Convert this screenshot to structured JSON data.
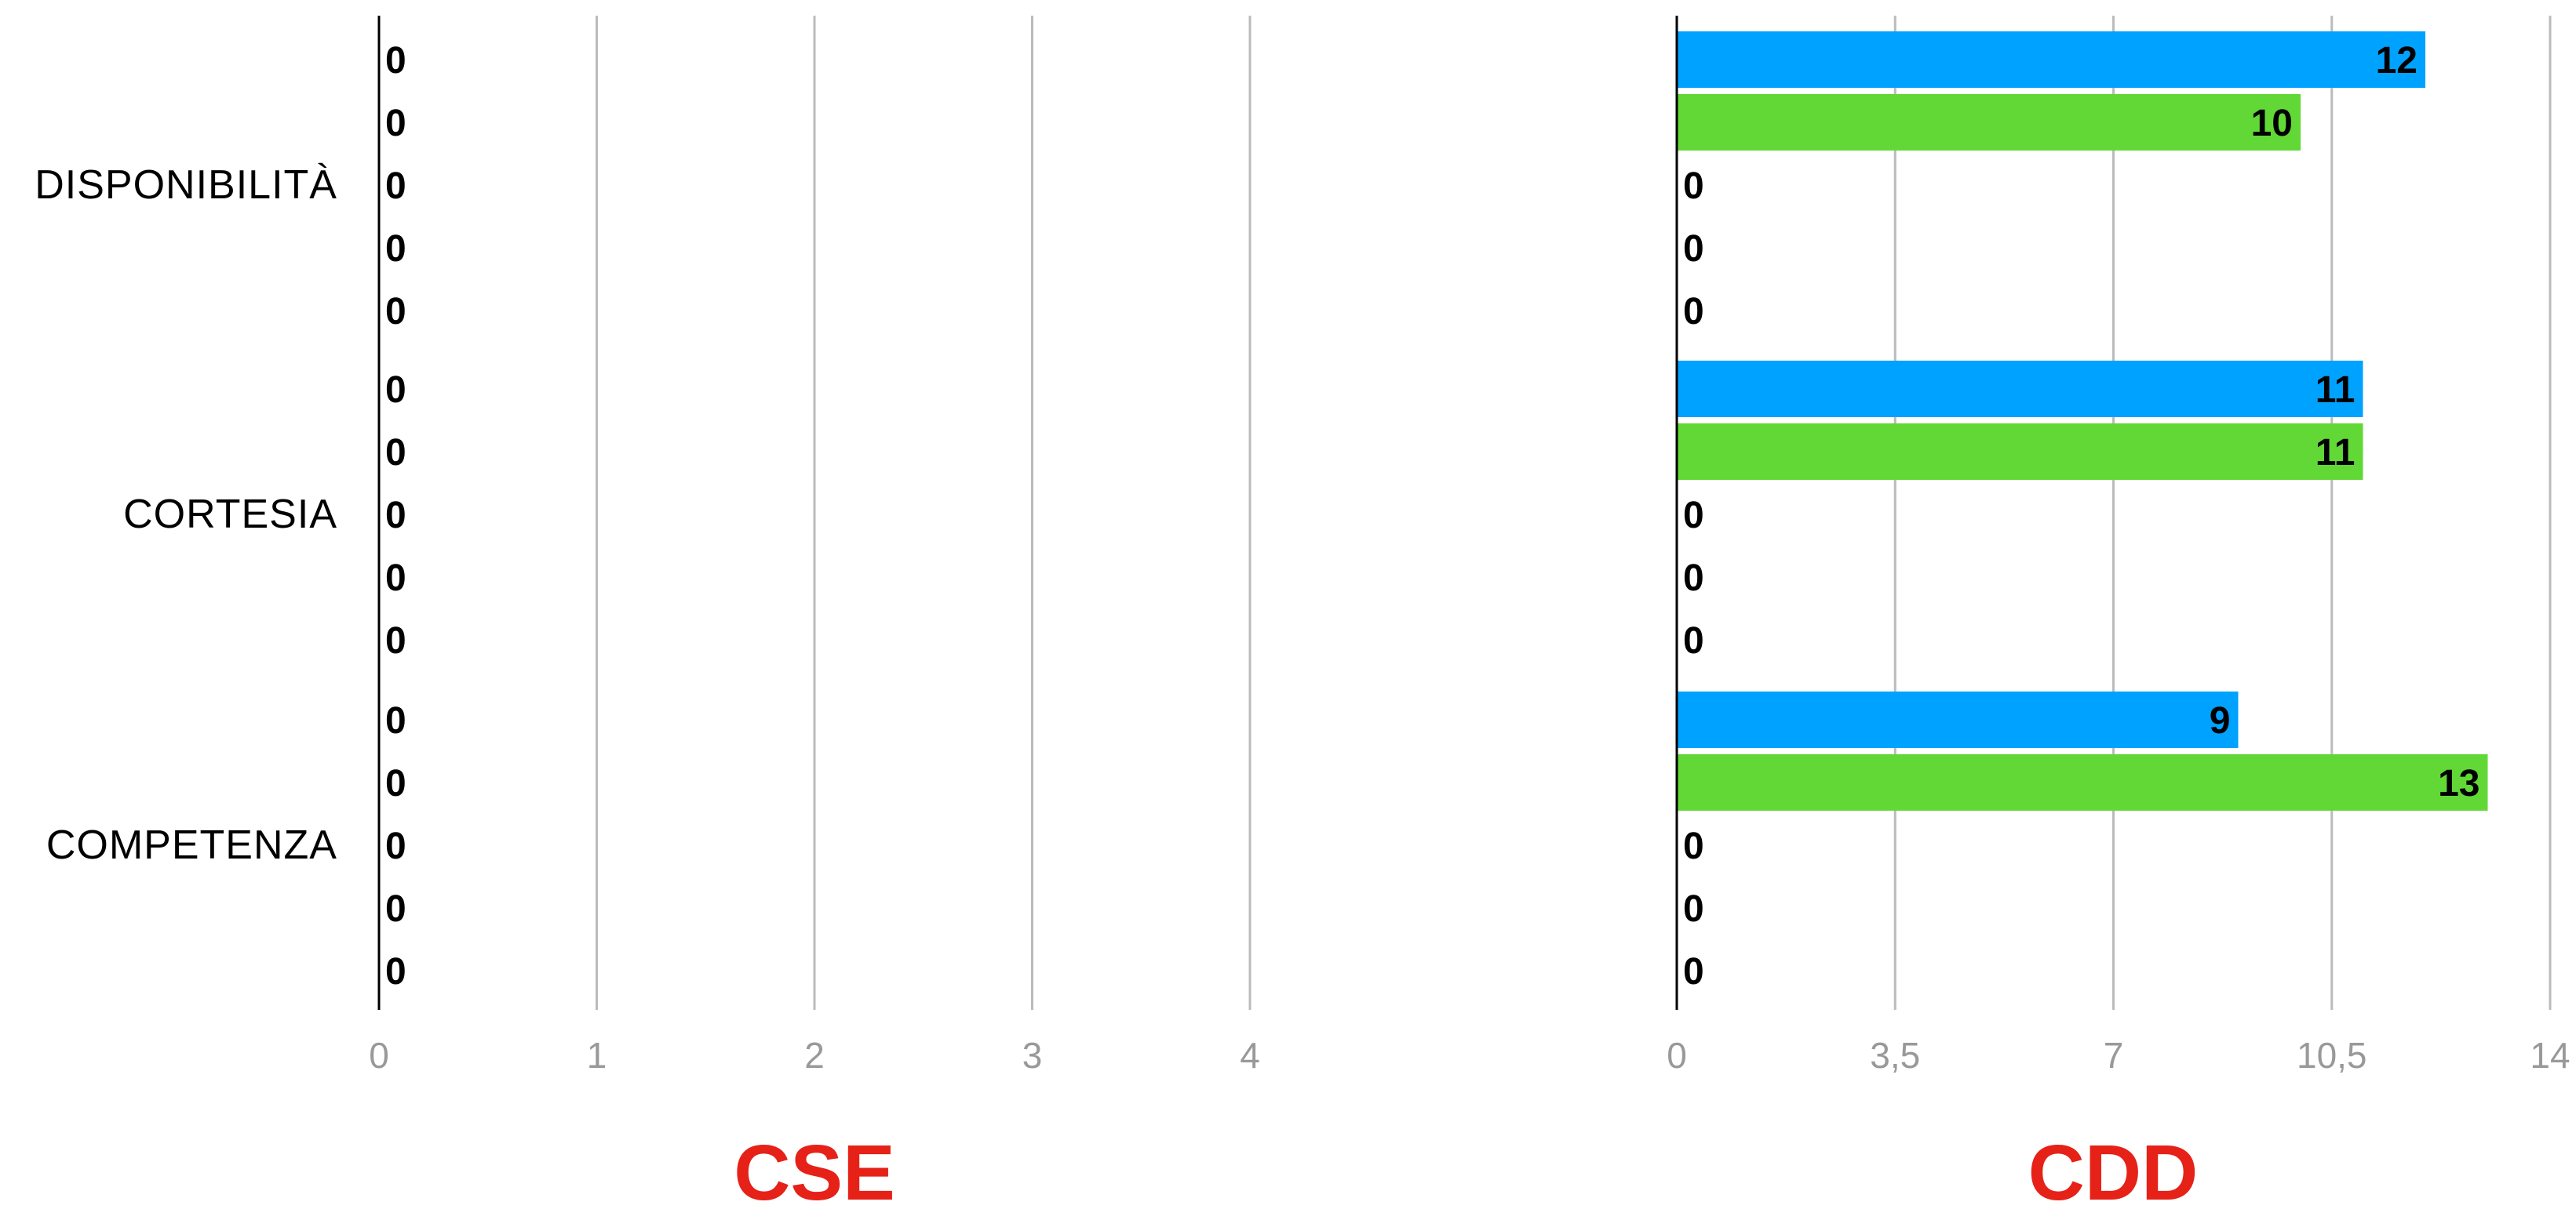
{
  "chart_data": [
    {
      "type": "bar",
      "orientation": "horizontal",
      "title": "CSE",
      "title_color": "#e62117",
      "categories": [
        "DISPONIBILITÀ",
        "CORTESIA",
        "COMPETENZA"
      ],
      "series": [
        {
          "color": "#00a2ff",
          "values": [
            0,
            0,
            0
          ]
        },
        {
          "color": "#61d836",
          "values": [
            0,
            0,
            0
          ]
        },
        {
          "color": "#00a2ff",
          "values": [
            0,
            0,
            0
          ]
        },
        {
          "color": "#61d836",
          "values": [
            0,
            0,
            0
          ]
        },
        {
          "color": "#00a2ff",
          "values": [
            0,
            0,
            0
          ]
        }
      ],
      "xlim": [
        0,
        4
      ],
      "x_ticks": [
        0,
        1,
        2,
        3,
        4
      ],
      "x_tick_labels": [
        "0",
        "1",
        "2",
        "3",
        "4"
      ],
      "grid": true,
      "legend": "none",
      "data_labels": true
    },
    {
      "type": "bar",
      "orientation": "horizontal",
      "title": "CDD",
      "title_color": "#e62117",
      "categories": [
        "DISPONIBILITÀ",
        "CORTESIA",
        "COMPETENZA"
      ],
      "series": [
        {
          "color": "#00a2ff",
          "values": [
            12,
            11,
            9
          ]
        },
        {
          "color": "#61d836",
          "values": [
            10,
            11,
            13
          ]
        },
        {
          "color": "#00a2ff",
          "values": [
            0,
            0,
            0
          ]
        },
        {
          "color": "#61d836",
          "values": [
            0,
            0,
            0
          ]
        },
        {
          "color": "#00a2ff",
          "values": [
            0,
            0,
            0
          ]
        }
      ],
      "xlim": [
        0,
        14
      ],
      "x_ticks": [
        0,
        3.5,
        7,
        10.5,
        14
      ],
      "x_tick_labels": [
        "0",
        "3,5",
        "7",
        "10,5",
        "14"
      ],
      "grid": true,
      "legend": "none",
      "data_labels": true
    }
  ],
  "colors": {
    "axis_line": "#000000",
    "gridline": "#bbbbbb",
    "tick_label": "#999999",
    "category_label": "#000000",
    "data_label": "#000000"
  }
}
